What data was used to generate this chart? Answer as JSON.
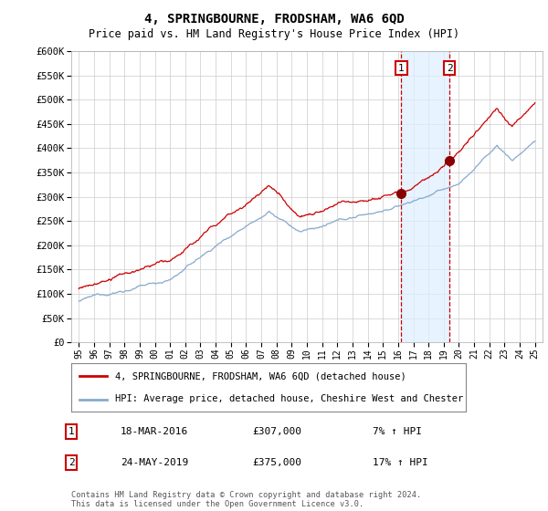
{
  "title": "4, SPRINGBOURNE, FRODSHAM, WA6 6QD",
  "subtitle": "Price paid vs. HM Land Registry's House Price Index (HPI)",
  "ylim": [
    0,
    600000
  ],
  "yticks": [
    0,
    50000,
    100000,
    150000,
    200000,
    250000,
    300000,
    350000,
    400000,
    450000,
    500000,
    550000,
    600000
  ],
  "transaction1": {
    "date": "18-MAR-2016",
    "price": 307000,
    "pct": "7%",
    "dir": "↑",
    "label": "1"
  },
  "transaction2": {
    "date": "24-MAY-2019",
    "price": 375000,
    "pct": "17%",
    "dir": "↑",
    "label": "2"
  },
  "legend_property": "4, SPRINGBOURNE, FRODSHAM, WA6 6QD (detached house)",
  "legend_hpi": "HPI: Average price, detached house, Cheshire West and Chester",
  "footer": "Contains HM Land Registry data © Crown copyright and database right 2024.\nThis data is licensed under the Open Government Licence v3.0.",
  "property_color": "#cc0000",
  "hpi_color": "#88aacc",
  "marker_color": "#880000",
  "vline_color": "#cc0000",
  "shade_color": "#ddeeff",
  "sale1_year": 2016.21,
  "sale2_year": 2019.38,
  "sale1_price": 307000,
  "sale2_price": 375000,
  "xmin": 1994.5,
  "xmax": 2025.5
}
